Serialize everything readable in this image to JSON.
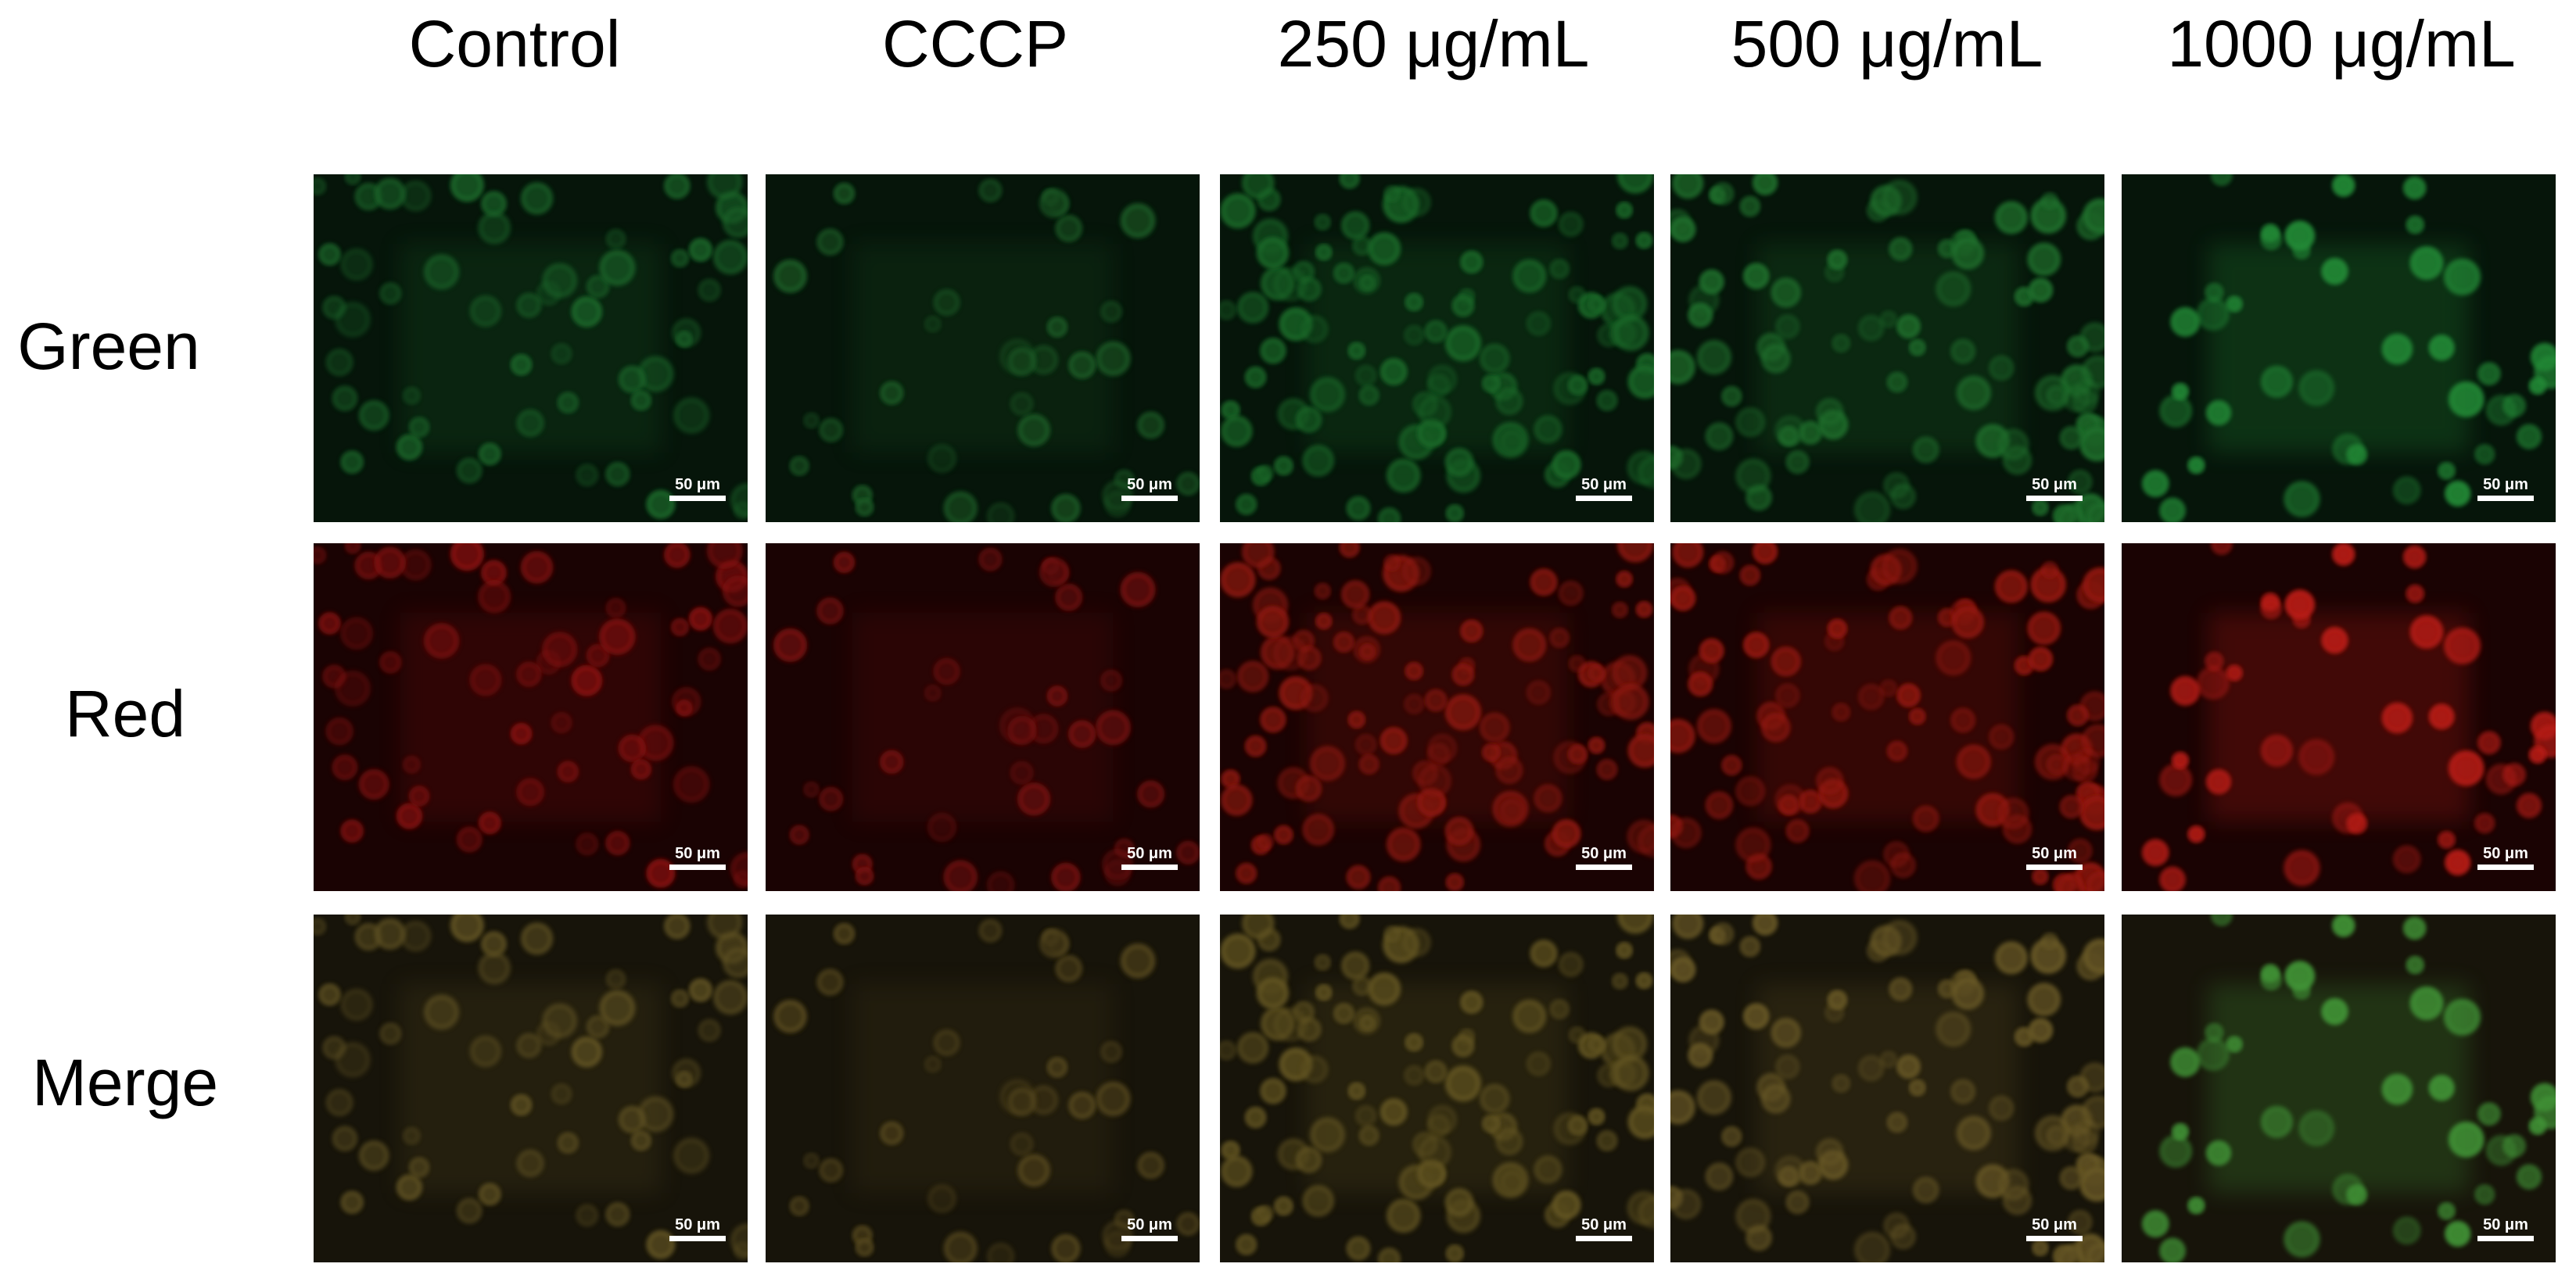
{
  "columns": [
    "Control",
    "CCCP",
    "250 μg/mL",
    "500 μg/mL",
    "1000 μg/mL"
  ],
  "rows": [
    "Green",
    "Red",
    "Merge"
  ],
  "scale_bar_label": "50 μm"
}
